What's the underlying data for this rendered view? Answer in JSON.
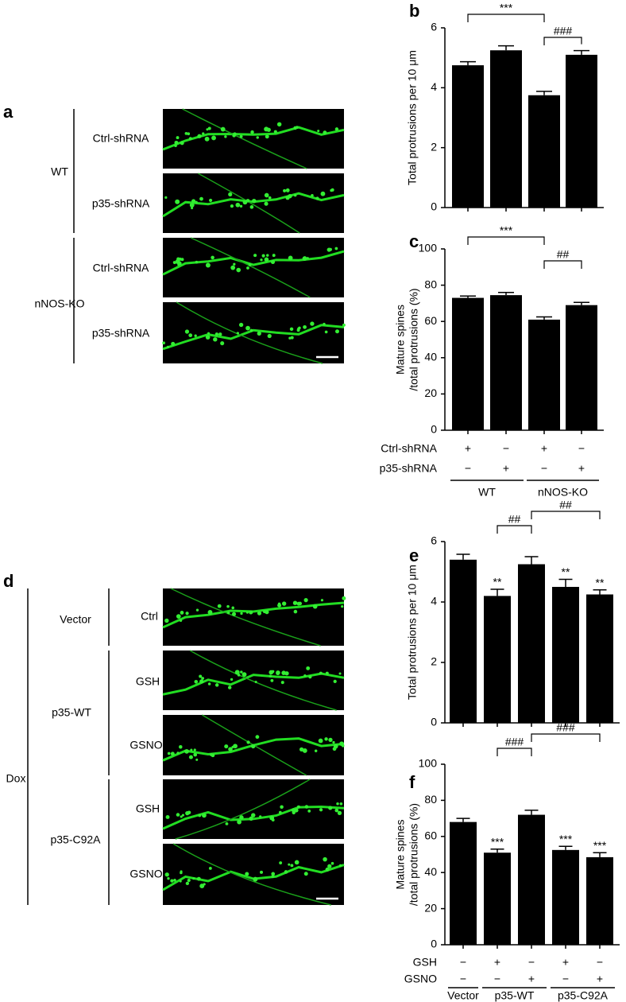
{
  "panel_a": {
    "label": "a",
    "groups": [
      {
        "label": "WT",
        "rows": [
          "Ctrl-shRNA",
          "p35-shRNA"
        ]
      },
      {
        "label": "nNOS-KO",
        "rows": [
          "Ctrl-shRNA",
          "p35-shRNA"
        ]
      }
    ]
  },
  "panel_d": {
    "label": "d",
    "treatment": "Dox",
    "groups": [
      {
        "label": "Vector",
        "rows": [
          "Ctrl"
        ]
      },
      {
        "label": "p35-WT",
        "rows": [
          "GSH",
          "GSNO"
        ]
      },
      {
        "label": "p35-C92A",
        "rows": [
          "GSH",
          "GSNO"
        ]
      }
    ]
  },
  "chart_data": [
    {
      "panel": "b",
      "type": "bar",
      "ylabel": [
        "Total protrusions per 10 μm"
      ],
      "values": [
        4.75,
        5.25,
        3.75,
        5.1
      ],
      "errors": [
        0.12,
        0.15,
        0.13,
        0.14
      ],
      "color": "#000000",
      "ylim": [
        0,
        6
      ],
      "yticks": [
        0,
        2,
        4,
        6
      ],
      "annotations": [
        {
          "text": "***"
        },
        {
          "text": "###"
        }
      ]
    },
    {
      "panel": "c",
      "type": "bar",
      "ylabel": [
        "Mature spines",
        "/total protrusions (%)"
      ],
      "values": [
        73,
        74.5,
        61,
        69
      ],
      "errors": [
        1,
        1.5,
        1.5,
        1.5
      ],
      "color": "#000000",
      "ylim": [
        0,
        100
      ],
      "yticks": [
        0,
        20,
        40,
        60,
        80,
        100
      ],
      "annotations": [
        {
          "text": "***"
        },
        {
          "text": "##"
        }
      ],
      "conditions": [
        {
          "label": "Ctrl-shRNA",
          "values": [
            "+",
            "−",
            "+",
            "−"
          ]
        },
        {
          "label": "p35-shRNA",
          "values": [
            "−",
            "+",
            "−",
            "+"
          ]
        }
      ],
      "groups": [
        "WT",
        "nNOS-KO"
      ]
    },
    {
      "panel": "e",
      "type": "bar",
      "ylabel": [
        "Total protrusions per 10 μm"
      ],
      "values": [
        5.4,
        4.2,
        5.25,
        4.5,
        4.25
      ],
      "errors": [
        0.18,
        0.22,
        0.25,
        0.25,
        0.15
      ],
      "significance": [
        null,
        "**",
        null,
        "**",
        "**"
      ],
      "color": "#000000",
      "ylim": [
        0,
        6
      ],
      "yticks": [
        0,
        2,
        4,
        6
      ],
      "annotations": [
        {
          "text": "##"
        },
        {
          "text": "##"
        }
      ]
    },
    {
      "panel": "f",
      "type": "bar",
      "ylabel": [
        "Mature spines",
        "/total protrusions (%)"
      ],
      "values": [
        68,
        51,
        72,
        52.5,
        48.5
      ],
      "errors": [
        2,
        2,
        2.5,
        2,
        2.5
      ],
      "significance": [
        null,
        "***",
        null,
        "***",
        "***"
      ],
      "color": "#000000",
      "ylim": [
        0,
        100
      ],
      "yticks": [
        0,
        20,
        40,
        60,
        80,
        100
      ],
      "annotations": [
        {
          "text": "###"
        },
        {
          "text": "###"
        }
      ],
      "conditions": [
        {
          "label": "GSH",
          "values": [
            "−",
            "+",
            "−",
            "+",
            "−"
          ]
        },
        {
          "label": "GSNO",
          "values": [
            "−",
            "−",
            "+",
            "−",
            "+"
          ]
        }
      ],
      "groups": [
        "Vector",
        "p35-WT",
        "p35-C92A"
      ]
    }
  ]
}
